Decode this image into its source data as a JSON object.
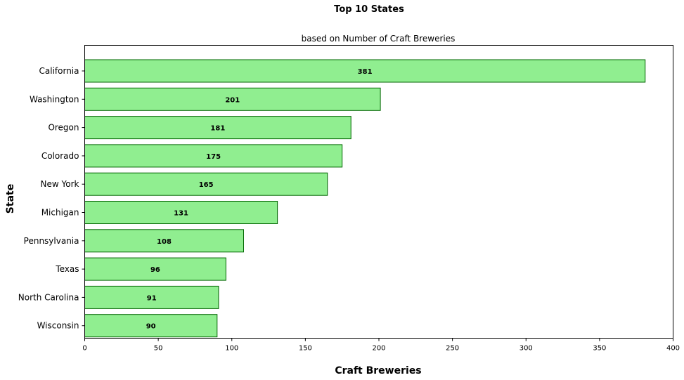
{
  "chart_data": {
    "type": "bar",
    "orientation": "horizontal",
    "title": "Top 10 States",
    "subtitle": "based on Number of Craft Breweries",
    "xlabel": "Craft Breweries",
    "ylabel": "State",
    "categories": [
      "California",
      "Washington",
      "Oregon",
      "Colorado",
      "New York",
      "Michigan",
      "Pennsylvania",
      "Texas",
      "North Carolina",
      "Wisconsin"
    ],
    "values": [
      381,
      201,
      181,
      175,
      165,
      131,
      108,
      96,
      91,
      90
    ],
    "xlim": [
      0,
      400
    ],
    "xticks": [
      0,
      50,
      100,
      150,
      200,
      250,
      300,
      350,
      400
    ],
    "grid": false,
    "legend": "none",
    "bar_color": "#90ee90",
    "edge_color": "#006400"
  }
}
